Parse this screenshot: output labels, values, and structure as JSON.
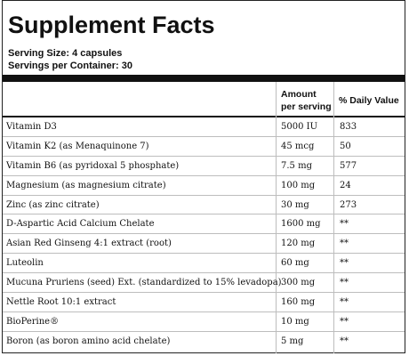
{
  "title": "Supplement Facts",
  "serving_size": "Serving Size: 4 capsules",
  "servings_per_container": "Servings per Container: 30",
  "headers": {
    "amount_line1": "Amount",
    "amount_line2": "per serving",
    "daily_value": "% Daily Value"
  },
  "rows": [
    {
      "name": "Vitamin D3",
      "amount": "5000 IU",
      "dv": "833"
    },
    {
      "name": "Vitamin K2 (as Menaquinone 7)",
      "amount": "45 mcg",
      "dv": "50"
    },
    {
      "name": "Vitamin B6 (as pyridoxal 5 phosphate)",
      "amount": "7.5 mg",
      "dv": "577"
    },
    {
      "name": "Magnesium (as magnesium citrate)",
      "amount": "100 mg",
      "dv": "24"
    },
    {
      "name": "Zinc (as zinc citrate)",
      "amount": "30 mg",
      "dv": "273"
    },
    {
      "name": "D-Aspartic Acid Calcium Chelate",
      "amount": "1600 mg",
      "dv": "**"
    },
    {
      "name": "Asian Red Ginseng 4:1 extract (root)",
      "amount": "120 mg",
      "dv": "**"
    },
    {
      "name": "Luteolin",
      "amount": "60 mg",
      "dv": "**"
    },
    {
      "name": "Mucuna Pruriens (seed) Ext. (standardized to 15% levadopa)",
      "amount": "300 mg",
      "dv": "**"
    },
    {
      "name": "Nettle Root 10:1 extract",
      "amount": "160 mg",
      "dv": "**"
    },
    {
      "name": "BioPerine®",
      "amount": "10 mg",
      "dv": "**"
    },
    {
      "name": "Boron (as boron amino acid chelate)",
      "amount": "5 mg",
      "dv": "**"
    }
  ]
}
